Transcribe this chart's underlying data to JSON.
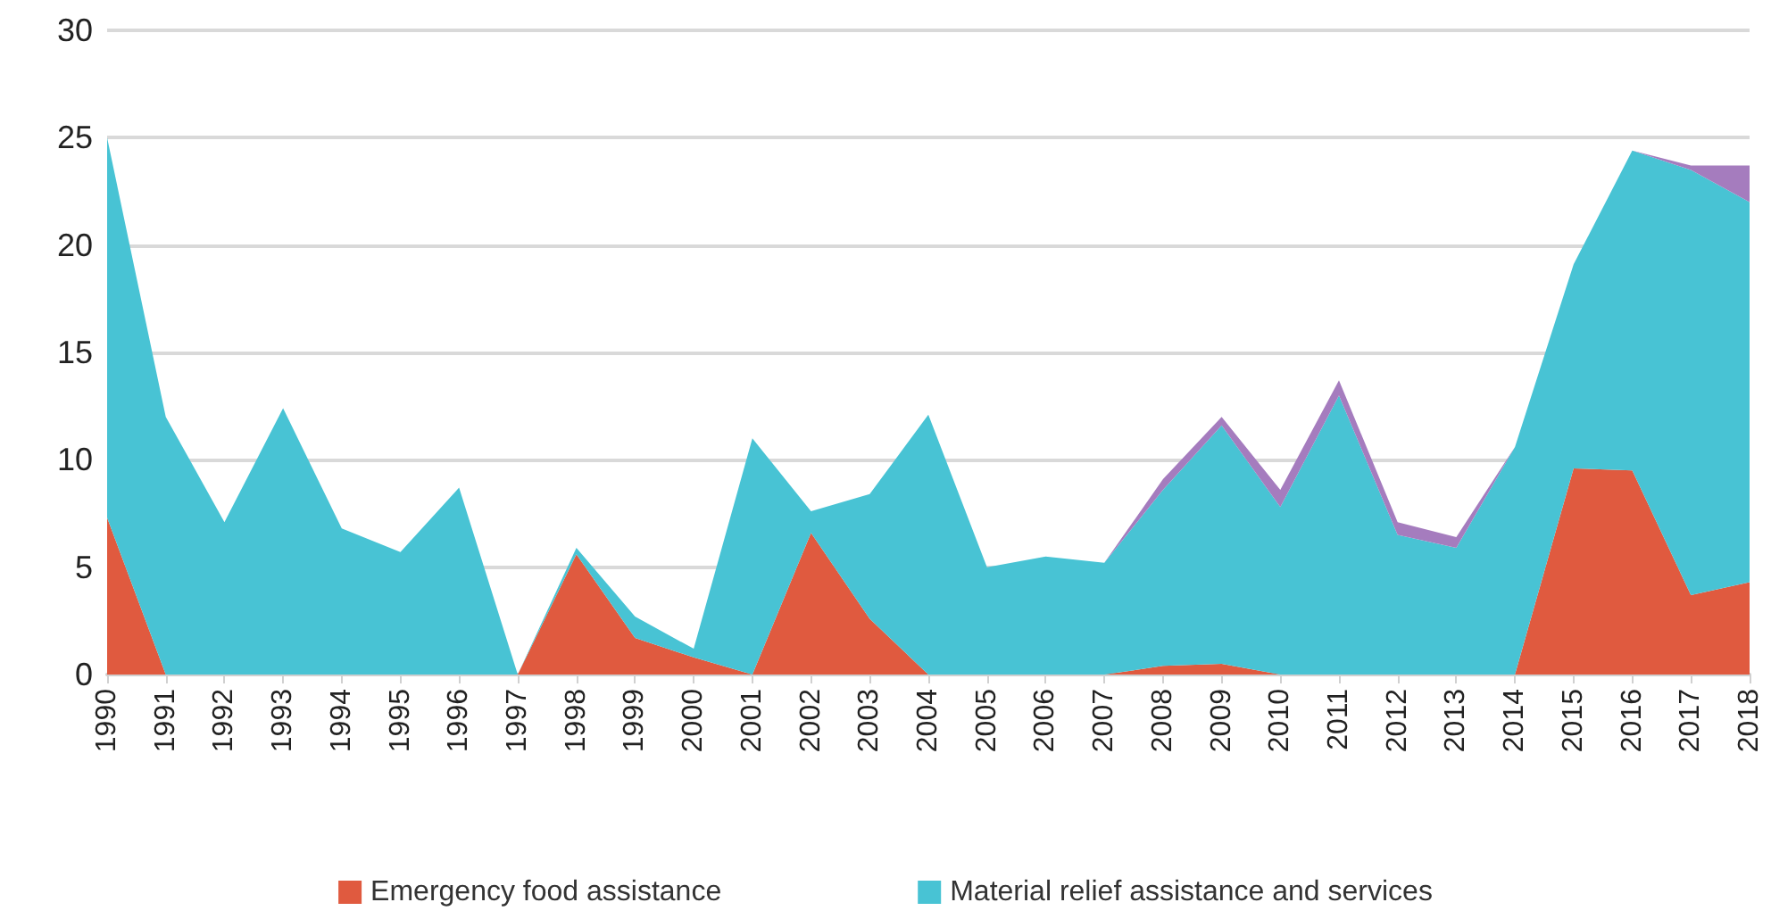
{
  "chart_data": {
    "type": "area",
    "stacked": true,
    "categories": [
      "1990",
      "1991",
      "1992",
      "1993",
      "1994",
      "1995",
      "1996",
      "1997",
      "1998",
      "1999",
      "2000",
      "2001",
      "2002",
      "2003",
      "2004",
      "2005",
      "2006",
      "2007",
      "2008",
      "2009",
      "2010",
      "2011",
      "2012",
      "2013",
      "2014",
      "2015",
      "2016",
      "2017",
      "2018"
    ],
    "series": [
      {
        "name": "Emergency food assistance",
        "color": "#e05a3f",
        "values": [
          7.3,
          0,
          0,
          0,
          0,
          0,
          0,
          0,
          5.6,
          1.7,
          0.8,
          0,
          6.6,
          2.6,
          0,
          0,
          0,
          0,
          0.4,
          0.5,
          0,
          0,
          0,
          0,
          0,
          9.6,
          9.5,
          3.7,
          4.3
        ]
      },
      {
        "name": "Material relief assistance and services",
        "color": "#48c3d4",
        "values": [
          17.7,
          12,
          7.1,
          12.4,
          6.8,
          5.7,
          8.7,
          0,
          0.3,
          1.0,
          0.4,
          11,
          1.0,
          5.8,
          12.1,
          5.0,
          5.5,
          5.2,
          8.2,
          11.1,
          7.8,
          13.0,
          6.5,
          5.9,
          10.6,
          9.5,
          14.9,
          19.8,
          17.7
        ]
      },
      {
        "color": "#a57cbe",
        "values": [
          null,
          null,
          null,
          null,
          null,
          null,
          null,
          null,
          null,
          null,
          null,
          null,
          null,
          null,
          null,
          null,
          null,
          0,
          0.5,
          0.4,
          0.8,
          0.7,
          0.6,
          0.5,
          0,
          0,
          0,
          0.2,
          1.7
        ]
      }
    ],
    "ylim": [
      0,
      30
    ],
    "yticks": [
      0,
      5,
      10,
      15,
      20,
      25,
      30
    ],
    "grid": "y",
    "legend": "bottom"
  }
}
